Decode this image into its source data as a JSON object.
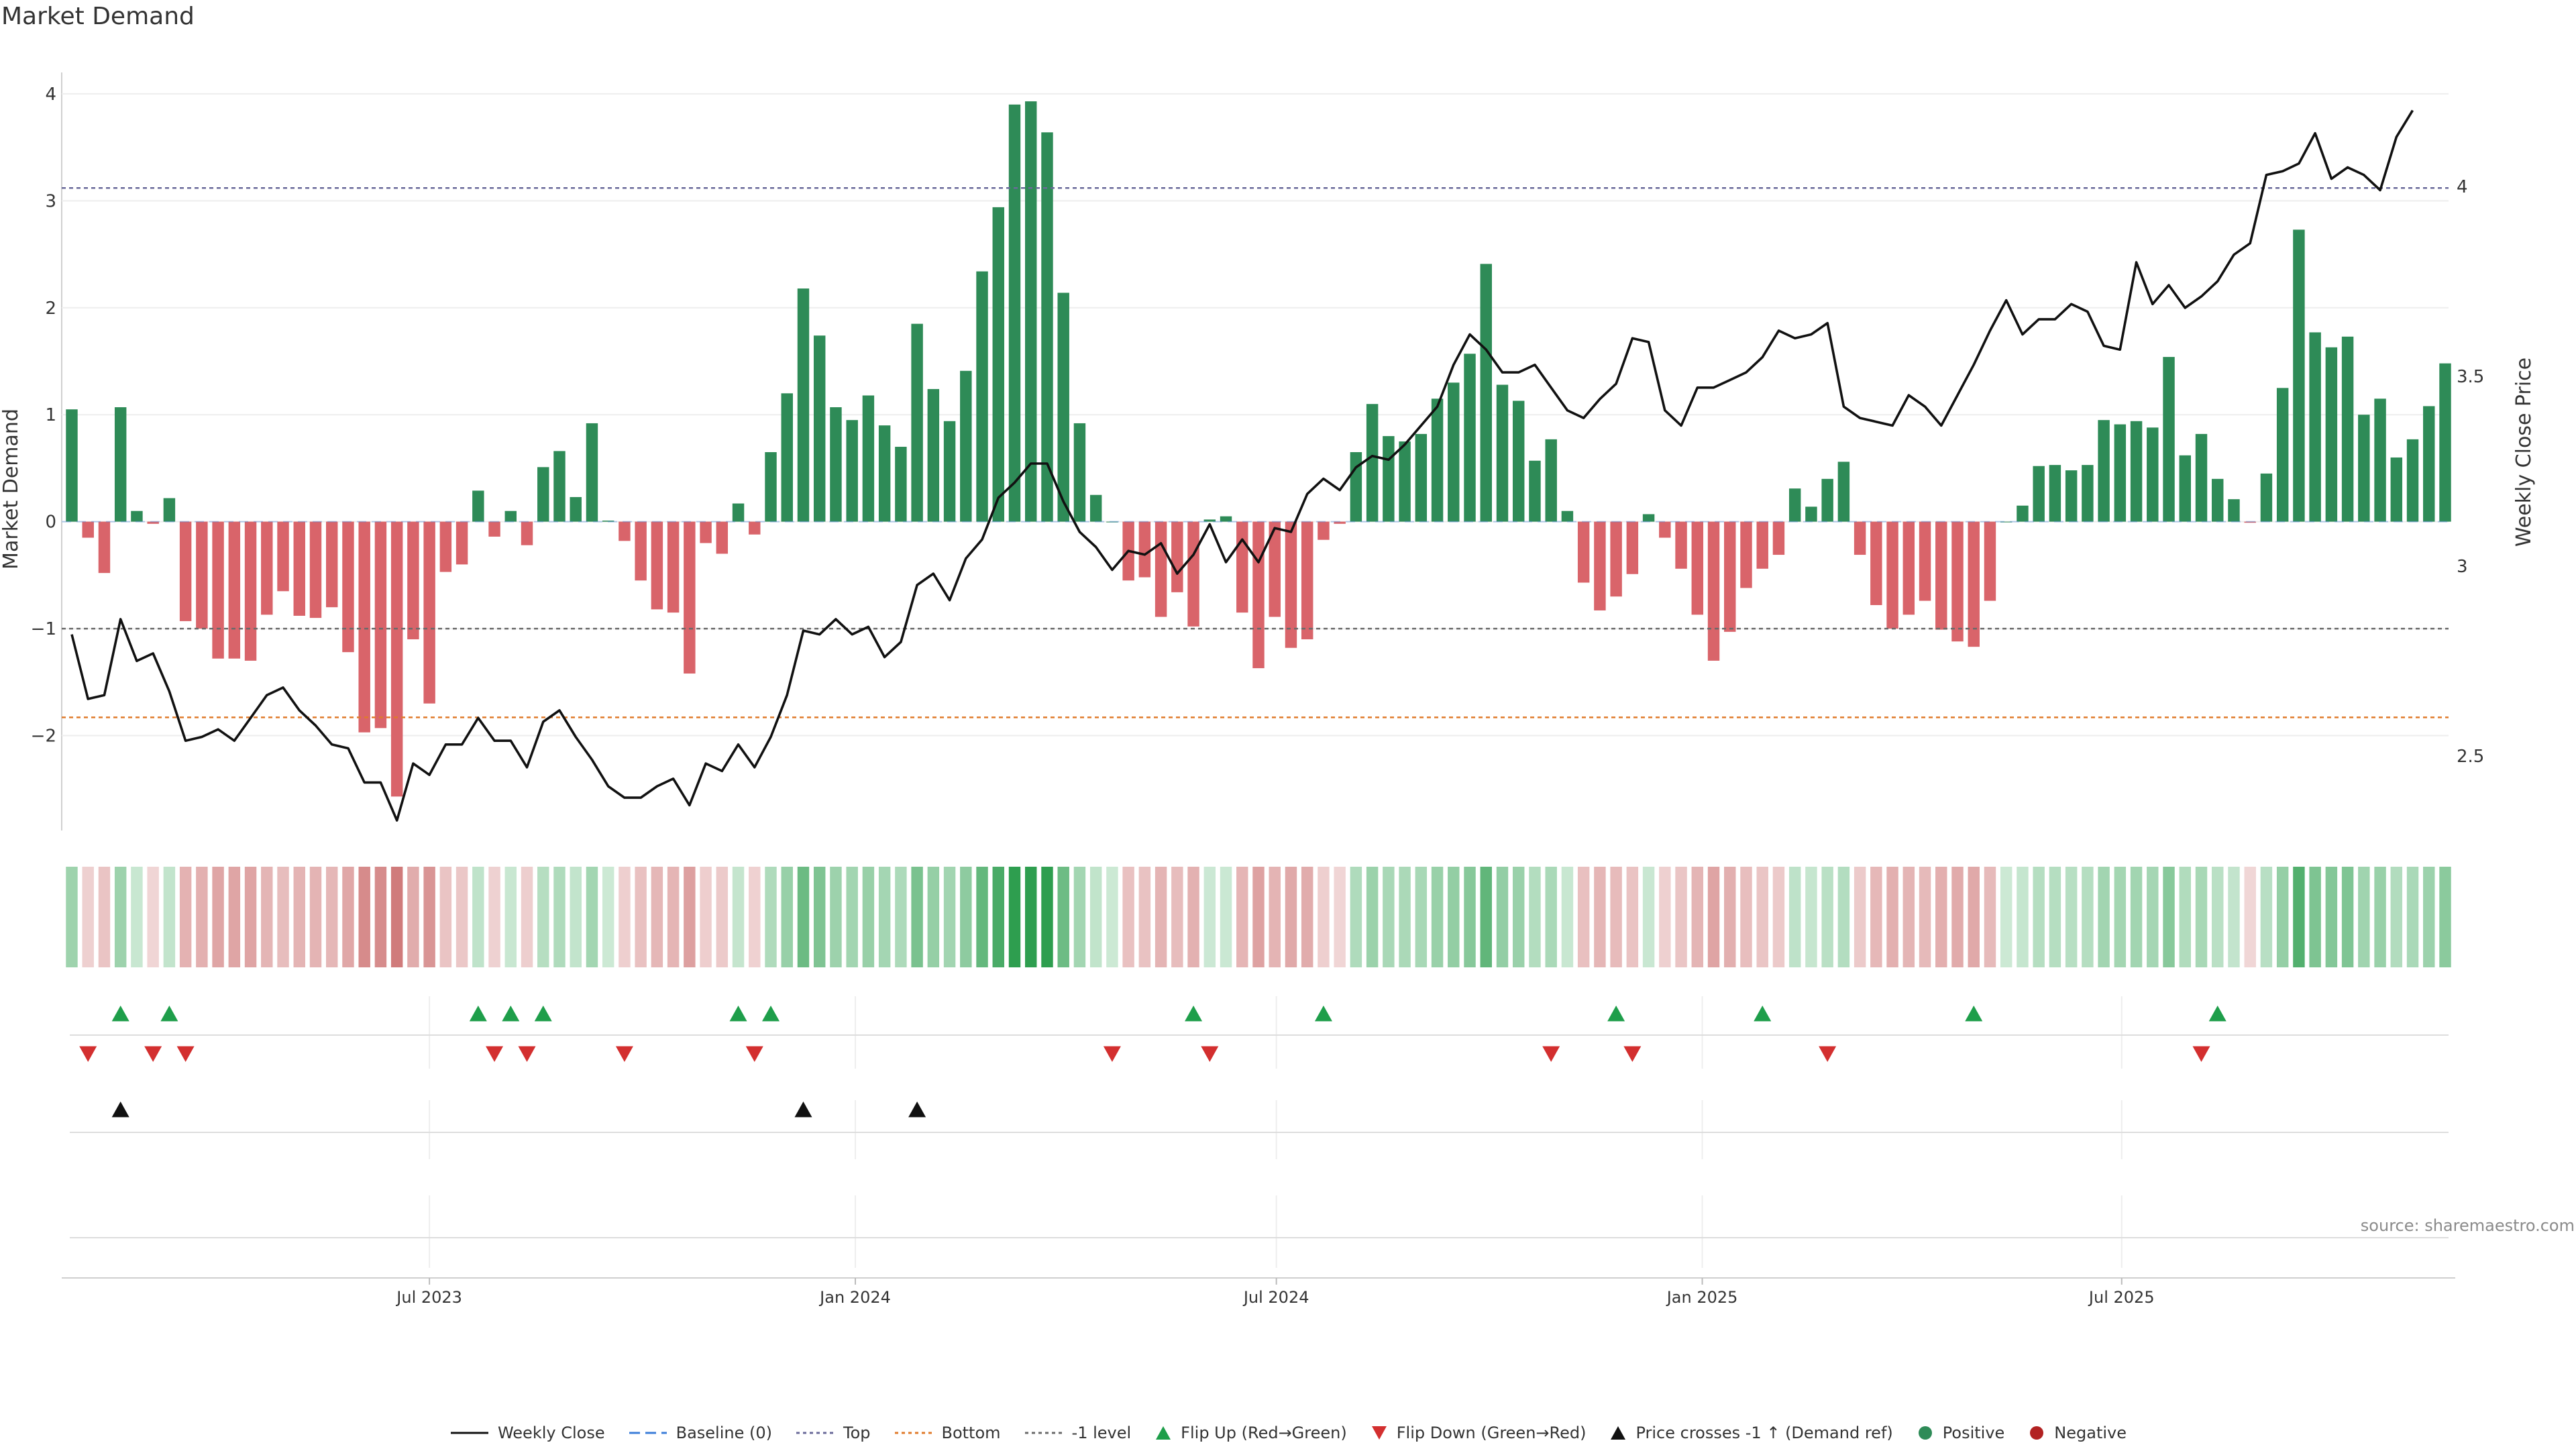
{
  "title": "Market Demand",
  "source": "source: sharemaestro.com",
  "colors": {
    "positive": "#2e8b57",
    "negative": "#d9646a",
    "line": "#111111",
    "top": "#6a6a9a",
    "bottom": "#e07b2b",
    "minus1": "#6a6a6a",
    "flip_up": "#1e9e4a",
    "flip_down": "#d32f2f",
    "cross": "#111111"
  },
  "legend": [
    {
      "label": "Weekly Close",
      "kind": "line",
      "color": "#111111"
    },
    {
      "label": "Baseline (0)",
      "kind": "dash",
      "color": "#3b7dd8"
    },
    {
      "label": "Top",
      "kind": "dot",
      "color": "#6a6a9a"
    },
    {
      "label": "Bottom",
      "kind": "dot",
      "color": "#e07b2b"
    },
    {
      "label": "-1 level",
      "kind": "dot",
      "color": "#6a6a6a"
    },
    {
      "label": "Flip Up (Red→Green)",
      "kind": "up",
      "color": "#1e9e4a"
    },
    {
      "label": "Flip Down (Green→Red)",
      "kind": "down",
      "color": "#d32f2f"
    },
    {
      "label": "Price crosses -1 ↑ (Demand ref)",
      "kind": "up",
      "color": "#111111"
    },
    {
      "label": "Positive",
      "kind": "circle",
      "color": "#2e8b57"
    },
    {
      "label": "Negative",
      "kind": "circle",
      "color": "#b22222"
    }
  ],
  "chart_data": {
    "type": "bar+line",
    "title": "Market Demand",
    "ylabel_left": "Market Demand",
    "ylabel_right": "Weekly Close Price",
    "ylim_left": [
      -2.9,
      4.2
    ],
    "ylim_right": [
      2.3,
      4.3
    ],
    "yticks_left": [
      -2,
      -1,
      0,
      1,
      2,
      3,
      4
    ],
    "yticks_right": [
      2.5,
      3,
      3.5,
      4
    ],
    "xticks": [
      "Jul 2023",
      "Jan 2024",
      "Jul 2024",
      "Jan 2025",
      "Jul 2025"
    ],
    "xtick_index": [
      22,
      48.2,
      74.1,
      100.3,
      126.1
    ],
    "top_level": 3.12,
    "bottom_level": -1.83,
    "minus1_level": -1.0,
    "baseline": 0,
    "demand": [
      1.05,
      -0.15,
      -0.48,
      1.07,
      0.1,
      -0.02,
      0.22,
      -0.93,
      -1.0,
      -1.28,
      -1.28,
      -1.3,
      -0.87,
      -0.65,
      -0.88,
      -0.9,
      -0.8,
      -1.22,
      -1.97,
      -1.93,
      -2.57,
      -1.1,
      -1.7,
      -0.47,
      -0.4,
      0.29,
      -0.14,
      0.1,
      -0.22,
      0.51,
      0.66,
      0.23,
      0.92,
      0.01,
      -0.18,
      -0.55,
      -0.82,
      -0.85,
      -1.42,
      -0.2,
      -0.3,
      0.17,
      -0.12,
      0.65,
      1.2,
      2.18,
      1.74,
      1.07,
      0.95,
      1.18,
      0.9,
      0.7,
      1.85,
      1.24,
      0.94,
      1.41,
      2.34,
      2.94,
      3.9,
      3.93,
      3.64,
      2.14,
      0.92,
      0.25,
      0.0,
      -0.55,
      -0.52,
      -0.89,
      -0.66,
      -0.98,
      0.02,
      0.05,
      -0.85,
      -1.37,
      -0.89,
      -1.18,
      -1.1,
      -0.17,
      -0.02,
      0.65,
      1.1,
      0.8,
      0.75,
      0.82,
      1.15,
      1.3,
      1.57,
      2.41,
      1.28,
      1.13,
      0.57,
      0.77,
      0.1,
      -0.57,
      -0.83,
      -0.7,
      -0.49,
      0.07,
      -0.15,
      -0.44,
      -0.87,
      -1.3,
      -1.03,
      -0.62,
      -0.44,
      -0.31,
      0.31,
      0.14,
      0.4,
      0.56,
      -0.31,
      -0.78,
      -1.0,
      -0.87,
      -0.74,
      -1.01,
      -1.12,
      -1.17,
      -0.74,
      0.0,
      0.15,
      0.52,
      0.53,
      0.48,
      0.53,
      0.95,
      0.91,
      0.94,
      0.88,
      1.54,
      0.62,
      0.82,
      0.4,
      0.21,
      -0.01,
      0.45,
      1.25,
      2.73,
      1.77,
      1.63,
      1.73,
      1.0,
      1.15,
      0.6,
      0.77,
      1.08,
      1.48
    ],
    "close": [
      2.82,
      2.65,
      2.66,
      2.86,
      2.75,
      2.77,
      2.67,
      2.54,
      2.55,
      2.57,
      2.54,
      2.6,
      2.66,
      2.68,
      2.62,
      2.58,
      2.53,
      2.52,
      2.43,
      2.43,
      2.33,
      2.48,
      2.45,
      2.53,
      2.53,
      2.6,
      2.54,
      2.54,
      2.47,
      2.59,
      2.62,
      2.55,
      2.49,
      2.42,
      2.39,
      2.39,
      2.42,
      2.44,
      2.37,
      2.48,
      2.46,
      2.53,
      2.47,
      2.55,
      2.66,
      2.83,
      2.82,
      2.86,
      2.82,
      2.84,
      2.76,
      2.8,
      2.95,
      2.98,
      2.91,
      3.02,
      3.07,
      3.18,
      3.22,
      3.27,
      3.27,
      3.17,
      3.09,
      3.05,
      2.99,
      3.04,
      3.03,
      3.06,
      2.98,
      3.03,
      3.11,
      3.01,
      3.07,
      3.01,
      3.1,
      3.09,
      3.19,
      3.23,
      3.2,
      3.26,
      3.29,
      3.28,
      3.32,
      3.37,
      3.42,
      3.53,
      3.61,
      3.57,
      3.51,
      3.51,
      3.53,
      3.47,
      3.41,
      3.39,
      3.44,
      3.48,
      3.6,
      3.59,
      3.41,
      3.37,
      3.47,
      3.47,
      3.49,
      3.51,
      3.55,
      3.62,
      3.6,
      3.61,
      3.64,
      3.42,
      3.39,
      3.38,
      3.37,
      3.45,
      3.42,
      3.37,
      3.45,
      3.53,
      3.62,
      3.7,
      3.61,
      3.65,
      3.65,
      3.69,
      3.67,
      3.58,
      3.57,
      3.8,
      3.69,
      3.74,
      3.68,
      3.71,
      3.75,
      3.82,
      3.85,
      4.03,
      4.04,
      4.06,
      4.14,
      4.02,
      4.05,
      4.03,
      3.99,
      4.13,
      4.2
    ],
    "flip_up_idx": [
      3,
      6,
      25,
      27,
      29,
      41,
      43,
      69,
      77,
      95,
      104,
      117,
      132
    ],
    "flip_down_idx": [
      1,
      5,
      7,
      26,
      28,
      34,
      42,
      64,
      70,
      91,
      96,
      108,
      131
    ],
    "cross_idx": [
      3,
      45,
      52
    ]
  }
}
